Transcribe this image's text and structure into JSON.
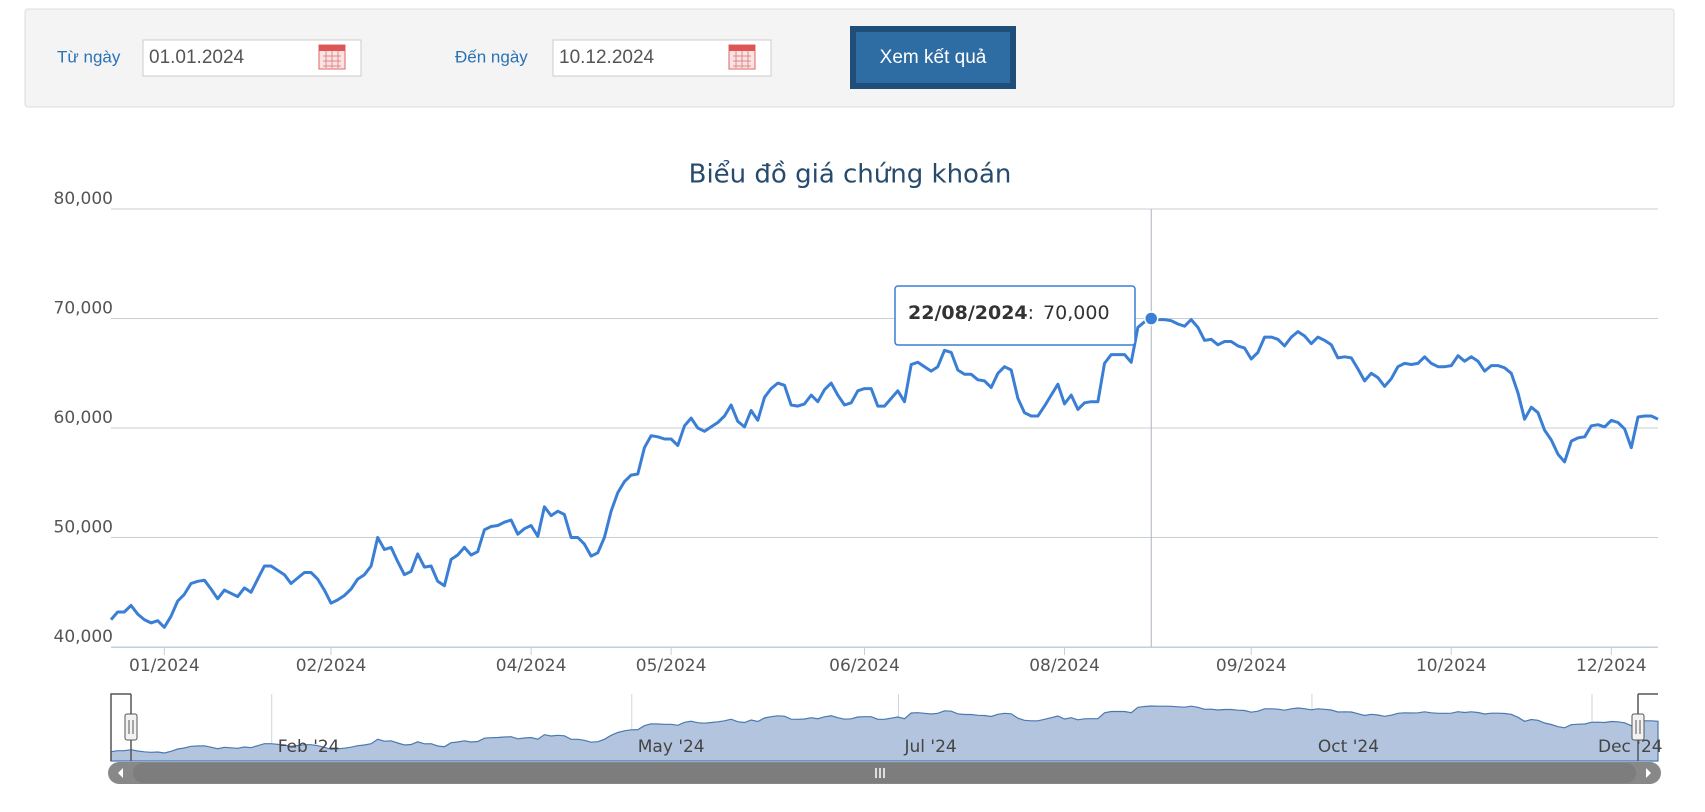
{
  "form": {
    "from_label": "Từ ngày",
    "from_value": "01.01.2024",
    "to_label": "Đến ngày",
    "to_value": "10.12.2024",
    "button": "Xem kết quả"
  },
  "chart_data": {
    "type": "line",
    "title": "Biểu đồ giá chứng khoán",
    "color": "#3a7fd5",
    "ylim": [
      40000,
      80000
    ],
    "yticks": [
      {
        "value": 40000,
        "label": "40,000"
      },
      {
        "value": 50000,
        "label": "50,000"
      },
      {
        "value": 60000,
        "label": "60,000"
      },
      {
        "value": 70000,
        "label": "70,000"
      },
      {
        "value": 80000,
        "label": "80,000"
      }
    ],
    "xlim": [
      0,
      232
    ],
    "xticks": [
      {
        "value": 8,
        "label": "01/2024"
      },
      {
        "value": 33,
        "label": "02/2024"
      },
      {
        "value": 63,
        "label": "04/2024"
      },
      {
        "value": 84,
        "label": "05/2024"
      },
      {
        "value": 113,
        "label": "06/2024"
      },
      {
        "value": 143,
        "label": "08/2024"
      },
      {
        "value": 171,
        "label": "09/2024"
      },
      {
        "value": 201,
        "label": "10/2024"
      },
      {
        "value": 225,
        "label": "12/2024"
      }
    ],
    "grid": true,
    "values": [
      42500,
      43200,
      43200,
      43800,
      43000,
      42500,
      42200,
      42400,
      41800,
      42800,
      44200,
      44800,
      45800,
      46000,
      46100,
      45300,
      44400,
      45200,
      44900,
      44600,
      45400,
      45000,
      46200,
      47400,
      47400,
      47000,
      46600,
      45800,
      46300,
      46800,
      46800,
      46200,
      45200,
      44000,
      44300,
      44700,
      45300,
      46200,
      46600,
      47400,
      50000,
      48900,
      49100,
      47800,
      46600,
      46900,
      48500,
      47300,
      47400,
      46000,
      45600,
      48000,
      48400,
      49100,
      48400,
      48700,
      50700,
      51000,
      51100,
      51400,
      51600,
      50300,
      50800,
      51100,
      50100,
      52800,
      52000,
      52400,
      52100,
      50000,
      50000,
      49400,
      48300,
      48600,
      50000,
      52400,
      54100,
      55100,
      55700,
      55800,
      58200,
      59300,
      59200,
      59000,
      59000,
      58400,
      60200,
      60900,
      60000,
      59700,
      60100,
      60500,
      61100,
      62100,
      60600,
      60100,
      61600,
      60700,
      62800,
      63600,
      64100,
      63900,
      62100,
      62000,
      62200,
      63000,
      62400,
      63500,
      64100,
      63000,
      62100,
      62300,
      63400,
      63600,
      63600,
      62000,
      62000,
      62700,
      63400,
      62400,
      65800,
      66000,
      65600,
      65200,
      65600,
      67100,
      66900,
      65300,
      64900,
      64900,
      64400,
      64300,
      63700,
      65000,
      65600,
      65300,
      62700,
      61400,
      61100,
      61100,
      62000,
      63000,
      64000,
      62200,
      63000,
      61700,
      62300,
      62400,
      62400,
      65900,
      66700,
      66700,
      66700,
      66000,
      69200,
      69700,
      70000,
      69900,
      69900,
      69800,
      69500,
      69300,
      69900,
      69200,
      68000,
      68100,
      67600,
      67900,
      67900,
      67500,
      67300,
      66300,
      66900,
      68300,
      68300,
      68100,
      67500,
      68300,
      68800,
      68400,
      67700,
      68300,
      68000,
      67600,
      66400,
      66500,
      66400,
      65400,
      64300,
      65000,
      64600,
      63800,
      64500,
      65600,
      65900,
      65800,
      65900,
      66500,
      65900,
      65600,
      65600,
      65700,
      66600,
      66100,
      66500,
      66100,
      65200,
      65700,
      65700,
      65500,
      65000,
      63200,
      60800,
      61900,
      61400,
      59800,
      58900,
      57600,
      56900,
      58800,
      59100,
      59200,
      60200,
      60300,
      60100,
      60700,
      60500,
      59900,
      58200,
      61000,
      61100,
      61100,
      60800
    ],
    "tooltip": {
      "x": 156,
      "label": "22/08/2024",
      "separator": ":",
      "value": 70000,
      "value_label": "70,000"
    },
    "navigator": {
      "xticks": [
        {
          "value": 25,
          "label": "Feb '24"
        },
        {
          "value": 79,
          "label": "May '24"
        },
        {
          "value": 119,
          "label": "Jul '24"
        },
        {
          "value": 181,
          "label": "Oct '24"
        },
        {
          "value": 223,
          "label": "Dec '24"
        }
      ]
    }
  }
}
